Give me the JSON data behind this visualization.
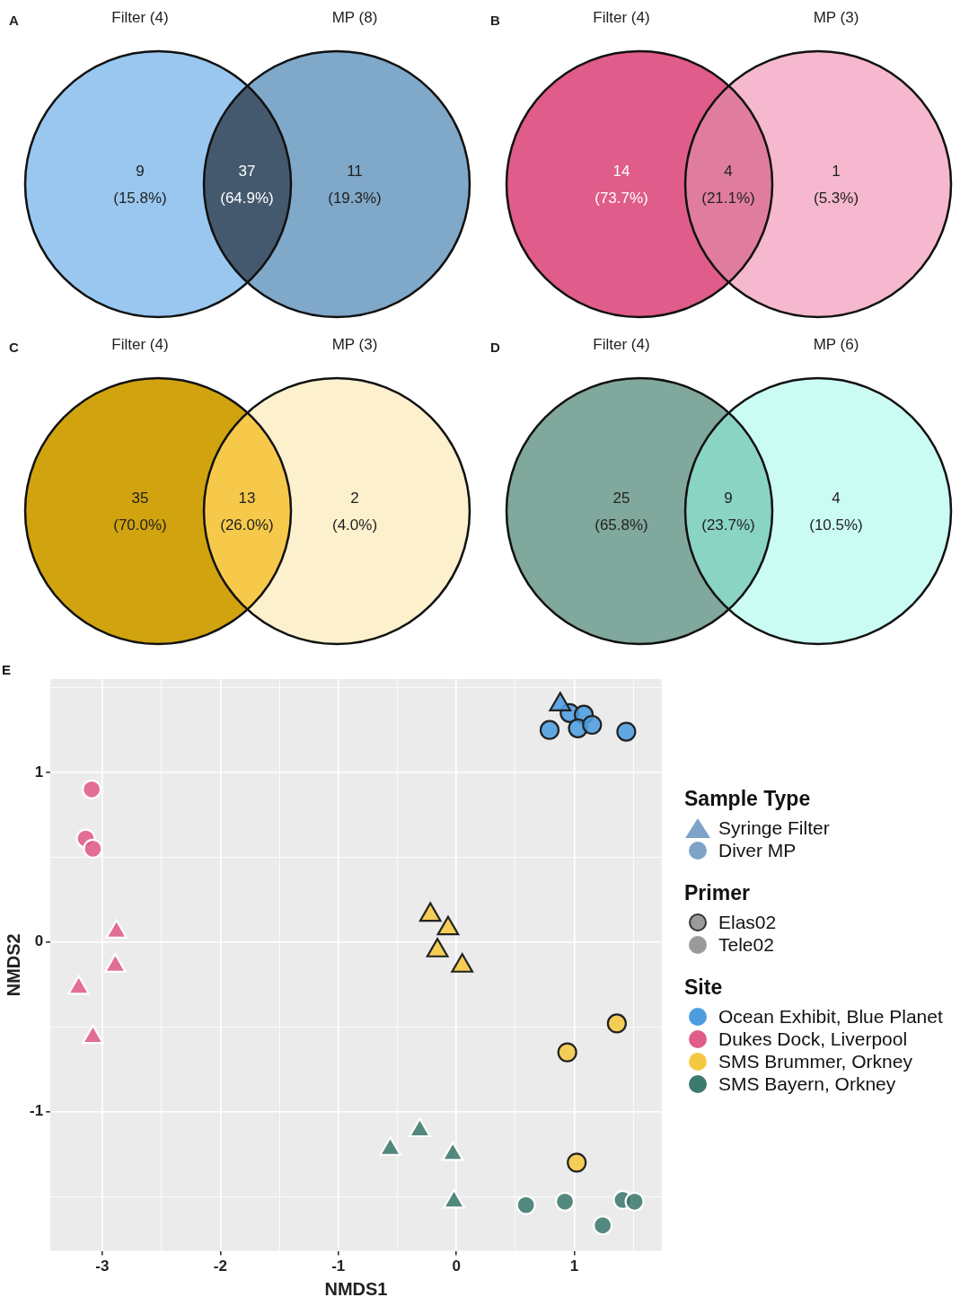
{
  "chart_data": [
    {
      "type": "other",
      "title": "A",
      "categories": [
        "Filter (4)",
        null,
        "MP (8)"
      ],
      "values": [
        15.8,
        64.9,
        19.3
      ],
      "value_labels": [
        "9 (15.8%)",
        "37 (64.9%)",
        "11 (19.3%)"
      ],
      "colors": [
        "#99c7f0",
        "#44596e",
        "#7fa8c9"
      ]
    },
    {
      "type": "other",
      "title": "B",
      "categories": [
        "Filter (4)",
        null,
        "MP (3)"
      ],
      "values": [
        73.7,
        21.1,
        5.3
      ],
      "value_labels": [
        "14 (73.7%)",
        "4 (21.1%)",
        "1 (5.3%)"
      ],
      "colors": [
        "#e05c8a",
        "#e07d9f",
        "#f5b8ce"
      ]
    },
    {
      "type": "other",
      "title": "C",
      "categories": [
        "Filter (4)",
        null,
        "MP (3)"
      ],
      "values": [
        70.0,
        26.0,
        4.0
      ],
      "value_labels": [
        "35 (70.0%)",
        "13 (26.0%)",
        "2 (4.0%)"
      ],
      "colors": [
        "#d1a30f",
        "#f6c94a",
        "#fdf0cc"
      ]
    },
    {
      "type": "other",
      "title": "D",
      "categories": [
        "Filter (4)",
        null,
        "MP (6)"
      ],
      "values": [
        65.8,
        23.7,
        10.5
      ],
      "value_labels": [
        "25 (65.8%)",
        "9 (23.7%)",
        "4 (10.5%)"
      ],
      "colors": [
        "#80a89d",
        "#8ad4c4",
        "#cafcf3"
      ]
    },
    {
      "type": "scatter",
      "title": "E",
      "xlabel": "NMDS1",
      "ylabel": "NMDS2",
      "legend_title": "Site",
      "legend": "right",
      "grid": true,
      "annotations": [
        "Sample Type",
        "Syringe Filter",
        "Diver MP",
        "Primer",
        "Elas02",
        "Tele02"
      ],
      "xlim": [
        -3.44,
        1.74
      ],
      "ylim": [
        -1.82,
        1.55
      ],
      "xticks": [
        -3,
        {
          "value": -2.5,
          "label": null
        },
        -2,
        {
          "value": -1.5,
          "label": null
        },
        -1,
        {
          "value": -0.5,
          "label": null
        },
        0,
        {
          "value": 0.5,
          "label": null
        },
        1,
        {
          "value": 1.5,
          "label": null
        }
      ],
      "yticks": [
        {
          "value": -1.5,
          "label": null
        },
        -1,
        {
          "value": -0.5,
          "label": null
        },
        0,
        {
          "value": 0.5,
          "label": null
        },
        1,
        {
          "value": 1.5,
          "label": null
        }
      ],
      "series": [
        {
          "color": "#4d9de0",
          "marker": "triangle",
          "x": [
            0.88
          ],
          "values": [
            1.4
          ]
        },
        {
          "name": "Ocean Exhibit, Blue Planet",
          "color": "#4d9de0",
          "marker": "circle",
          "x": [
            0.79,
            0.96,
            1.08,
            1.03,
            1.15,
            1.44
          ],
          "values": [
            1.25,
            1.35,
            1.34,
            1.26,
            1.28,
            1.24
          ]
        },
        {
          "color": "#e05c8a",
          "marker": "triangle",
          "x": [
            -2.88,
            -2.89,
            -3.2,
            -3.08
          ],
          "values": [
            0.06,
            -0.14,
            -0.27,
            -0.56
          ]
        },
        {
          "name": "Dukes Dock, Liverpool",
          "color": "#e05c8a",
          "marker": "circle",
          "x": [
            -3.09,
            -3.14,
            -3.08
          ],
          "values": [
            0.9,
            0.61,
            0.55
          ]
        },
        {
          "color": "#f5c842",
          "marker": "triangle",
          "x": [
            -0.22,
            -0.07,
            -0.16,
            0.05
          ],
          "values": [
            0.16,
            0.08,
            -0.05,
            -0.14
          ]
        },
        {
          "name": "SMS Brummer, Orkney",
          "color": "#f5c842",
          "marker": "circle",
          "x": [
            1.36,
            0.94,
            1.02
          ],
          "values": [
            -0.48,
            -0.65,
            -1.3
          ]
        },
        {
          "color": "#3d7a6e",
          "marker": "triangle",
          "x": [
            -0.56,
            -0.31,
            -0.03,
            -0.02
          ],
          "values": [
            -1.22,
            -1.11,
            -1.25,
            -1.53
          ]
        },
        {
          "name": "SMS Bayern, Orkney",
          "color": "#3d7a6e",
          "marker": "circle",
          "x": [
            0.59,
            0.92,
            1.24,
            1.41,
            1.51
          ],
          "values": [
            -1.55,
            -1.53,
            -1.67,
            -1.52,
            -1.53
          ]
        }
      ]
    }
  ]
}
